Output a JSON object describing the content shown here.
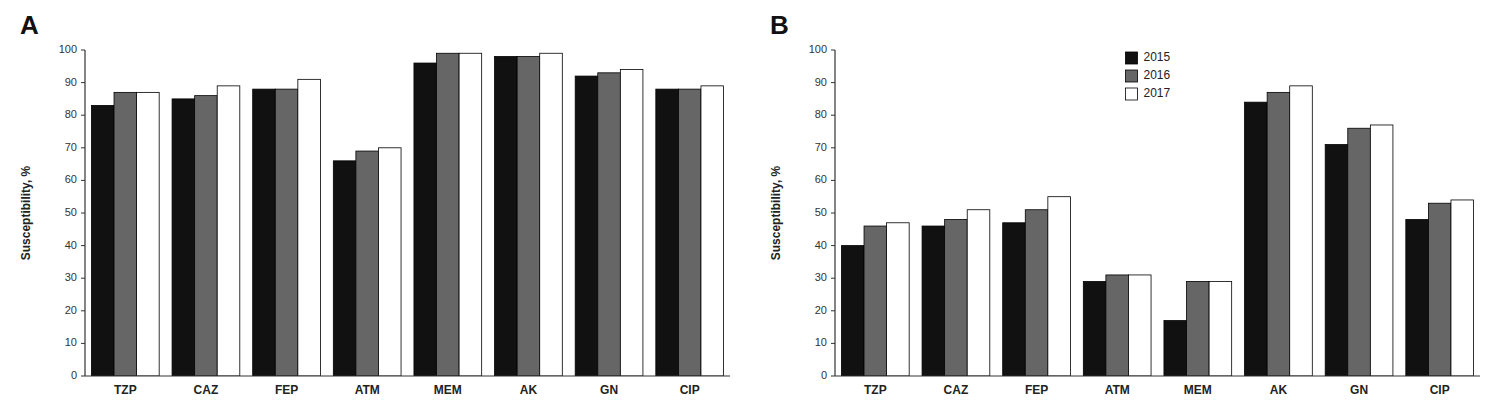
{
  "chart_data": [
    {
      "type": "bar",
      "title": "A",
      "categories": [
        "TZP",
        "CAZ",
        "FEP",
        "ATM",
        "MEM",
        "AK",
        "GN",
        "CIP"
      ],
      "series": [
        {
          "color": "#111111",
          "values": [
            83,
            85,
            88,
            66,
            96,
            98,
            92,
            88
          ]
        },
        {
          "color": "#666666",
          "values": [
            87,
            86,
            88,
            69,
            99,
            98,
            93,
            88
          ]
        },
        {
          "color": "#ffffff",
          "values": [
            87,
            89,
            91,
            70,
            99,
            99,
            94,
            89
          ]
        }
      ],
      "ylabel": "Susceptibility, %",
      "ylim": [
        0,
        100
      ],
      "yticks": [
        0,
        10,
        20,
        30,
        40,
        50,
        60,
        70,
        80,
        90,
        100
      ],
      "grid": false,
      "legend": false
    },
    {
      "type": "bar",
      "title": "B",
      "categories": [
        "TZP",
        "CAZ",
        "FEP",
        "ATM",
        "MEM",
        "AK",
        "GN",
        "CIP"
      ],
      "series": [
        {
          "name": "2015",
          "color": "#111111",
          "values": [
            40,
            46,
            47,
            29,
            17,
            84,
            71,
            48
          ]
        },
        {
          "name": "2016",
          "color": "#666666",
          "values": [
            46,
            48,
            51,
            31,
            29,
            87,
            76,
            53
          ]
        },
        {
          "name": "2017",
          "color": "#ffffff",
          "values": [
            47,
            51,
            55,
            31,
            29,
            89,
            77,
            54
          ]
        }
      ],
      "ylabel": "Susceptibility, %",
      "ylim": [
        0,
        100
      ],
      "yticks": [
        0,
        10,
        20,
        30,
        40,
        50,
        60,
        70,
        80,
        90,
        100
      ],
      "grid": false,
      "legend": "upper center"
    }
  ]
}
